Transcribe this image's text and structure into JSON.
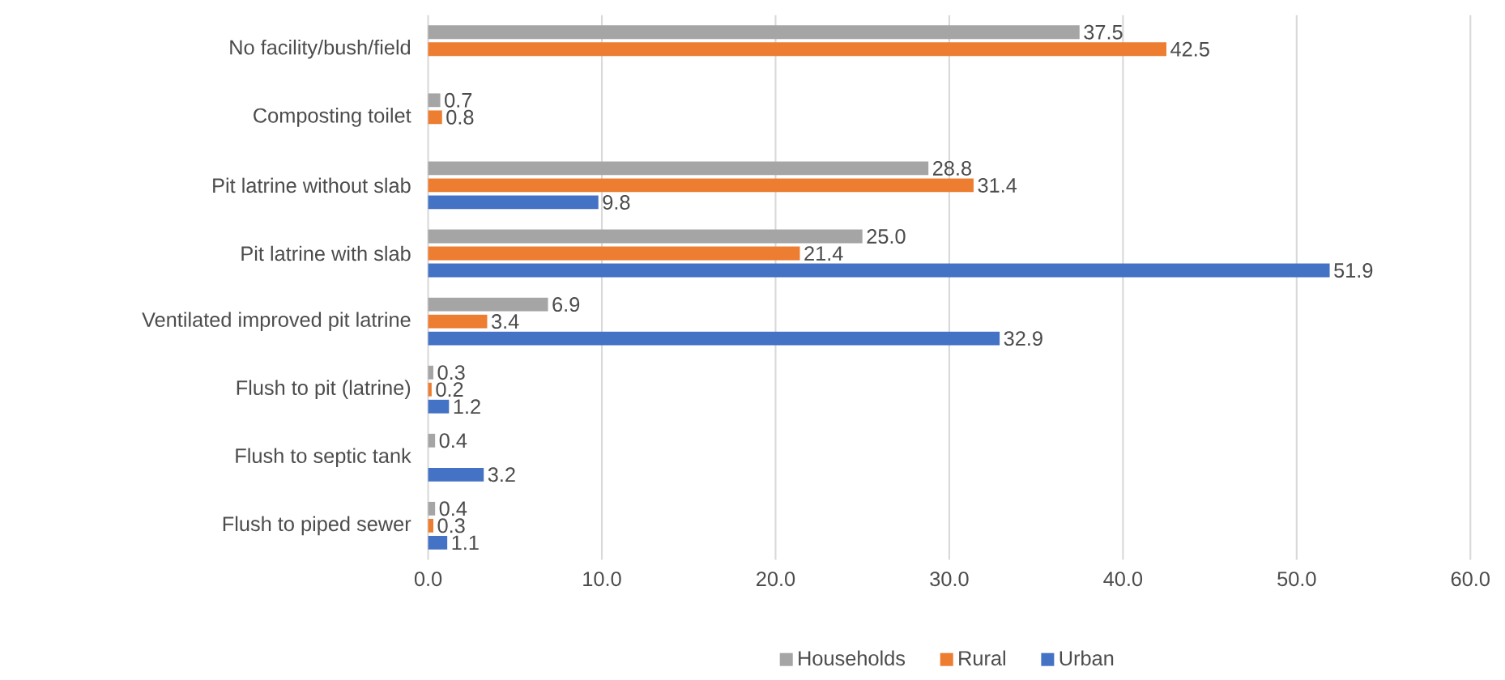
{
  "chart_data": {
    "type": "bar",
    "orientation": "horizontal",
    "categories": [
      "No facility/bush/field",
      "Composting toilet",
      "Pit latrine without slab",
      "Pit latrine with slab",
      "Ventilated improved pit latrine",
      "Flush to pit (latrine)",
      "Flush to septic tank",
      "Flush to piped sewer"
    ],
    "series": [
      {
        "name": "Households",
        "color": "#a5a5a5",
        "values": [
          37.5,
          0.7,
          28.8,
          25.0,
          6.9,
          0.3,
          0.4,
          0.4
        ],
        "value_labels": [
          "37.5",
          "0.7",
          "28.8",
          "25.0",
          "6.9",
          "0.3",
          "0.4",
          "0.4"
        ]
      },
      {
        "name": "Rural",
        "color": "#ed7d31",
        "values": [
          42.5,
          0.8,
          31.4,
          21.4,
          3.4,
          0.2,
          null,
          0.3
        ],
        "value_labels": [
          "42.5",
          "0.8",
          "31.4",
          "21.4",
          "3.4",
          "0.2",
          null,
          "0.3"
        ]
      },
      {
        "name": "Urban",
        "color": "#4472c4",
        "values": [
          null,
          null,
          9.8,
          51.9,
          32.9,
          1.2,
          3.2,
          1.1
        ],
        "value_labels": [
          null,
          null,
          "9.8",
          "51.9",
          "32.9",
          "1.2",
          "3.2",
          "1.1"
        ]
      }
    ],
    "xlim": [
      0,
      60
    ],
    "xticks": [
      {
        "value": 0,
        "label": "0.0"
      },
      {
        "value": 10,
        "label": "10.0"
      },
      {
        "value": 20,
        "label": "20.0"
      },
      {
        "value": 30,
        "label": "30.0"
      },
      {
        "value": 40,
        "label": "40.0"
      },
      {
        "value": 50,
        "label": "50.0"
      },
      {
        "value": 60,
        "label": "60.0"
      }
    ],
    "grid": "x",
    "legend": "bottom"
  }
}
